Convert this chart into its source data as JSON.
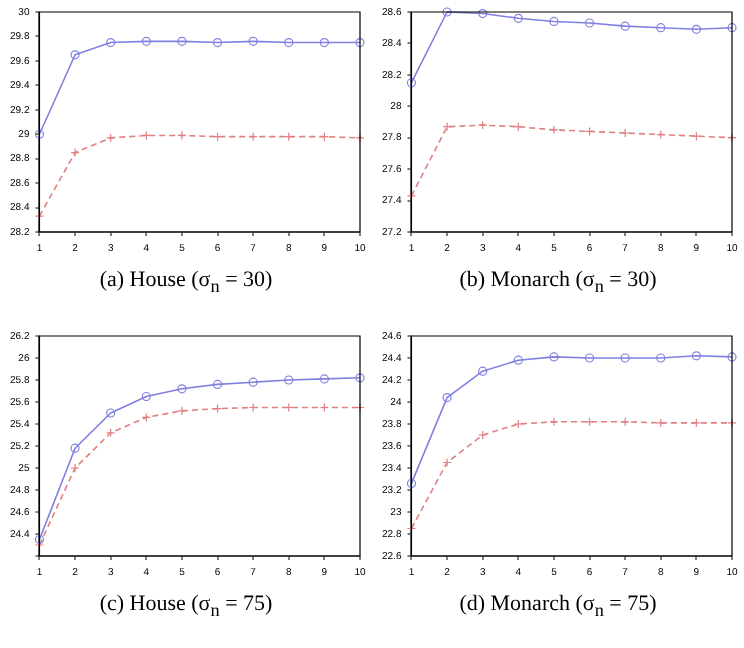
{
  "chart_data": [
    {
      "type": "line",
      "title": "(a) House (σ$_{n}$ = 30)",
      "x": [
        1,
        2,
        3,
        4,
        5,
        6,
        7,
        8,
        9,
        10
      ],
      "xlim": [
        1,
        10
      ],
      "xticks": [
        1,
        2,
        3,
        4,
        5,
        6,
        7,
        8,
        9,
        10
      ],
      "ylim": [
        28.2,
        30
      ],
      "yticks": [
        28.2,
        28.4,
        28.6,
        28.8,
        29,
        29.2,
        29.4,
        29.6,
        29.8,
        30
      ],
      "grid": false,
      "series": [
        {
          "color": "#8080e0",
          "marker": "circle",
          "line_style": "solid",
          "values": [
            29.0,
            29.65,
            29.75,
            29.76,
            29.76,
            29.75,
            29.76,
            29.75,
            29.75,
            29.75
          ]
        },
        {
          "color": "#e08080",
          "marker": "cross",
          "line_style": "dashed",
          "values": [
            28.33,
            28.85,
            28.97,
            28.99,
            28.99,
            28.98,
            28.98,
            28.98,
            28.98,
            28.97
          ]
        }
      ]
    },
    {
      "type": "line",
      "title": "(b) Monarch (σ$_{n}$ = 30)",
      "x": [
        1,
        2,
        3,
        4,
        5,
        6,
        7,
        8,
        9,
        10
      ],
      "xlim": [
        1,
        10
      ],
      "xticks": [
        1,
        2,
        3,
        4,
        5,
        6,
        7,
        8,
        9,
        10
      ],
      "ylim": [
        27.2,
        28.6
      ],
      "yticks": [
        27.2,
        27.4,
        27.6,
        27.8,
        28,
        28.2,
        28.4,
        28.6
      ],
      "grid": false,
      "series": [
        {
          "color": "#8080e0",
          "marker": "circle",
          "line_style": "solid",
          "values": [
            28.15,
            28.6,
            28.59,
            28.56,
            28.54,
            28.53,
            28.51,
            28.5,
            28.49,
            28.5
          ]
        },
        {
          "color": "#e08080",
          "marker": "cross",
          "line_style": "dashed",
          "values": [
            27.43,
            27.87,
            27.88,
            27.87,
            27.85,
            27.84,
            27.83,
            27.82,
            27.81,
            27.8
          ]
        }
      ]
    },
    {
      "type": "line",
      "title": "(c) House (σ$_{n}$ = 75)",
      "x": [
        1,
        2,
        3,
        4,
        5,
        6,
        7,
        8,
        9,
        10
      ],
      "xlim": [
        1,
        10
      ],
      "xticks": [
        1,
        2,
        3,
        4,
        5,
        6,
        7,
        8,
        9,
        10
      ],
      "ylim": [
        24.2,
        26.2
      ],
      "yticks": [
        {
          "value": 24.2,
          "label": null
        },
        24.4,
        24.6,
        24.8,
        25,
        25.2,
        25.4,
        25.6,
        25.8,
        26,
        26.2
      ],
      "grid": false,
      "series": [
        {
          "color": "#8080e0",
          "marker": "circle",
          "line_style": "solid",
          "values": [
            24.35,
            25.18,
            25.5,
            25.65,
            25.72,
            25.76,
            25.78,
            25.8,
            25.81,
            25.82
          ]
        },
        {
          "color": "#e08080",
          "marker": "cross",
          "line_style": "dashed",
          "values": [
            24.3,
            25.0,
            25.32,
            25.46,
            25.52,
            25.54,
            25.55,
            25.55,
            25.55,
            25.55
          ]
        }
      ]
    },
    {
      "type": "line",
      "title": "(d) Monarch (σ$_{n}$ = 75)",
      "x": [
        1,
        2,
        3,
        4,
        5,
        6,
        7,
        8,
        9,
        10
      ],
      "xlim": [
        1,
        10
      ],
      "xticks": [
        1,
        2,
        3,
        4,
        5,
        6,
        7,
        8,
        9,
        10
      ],
      "ylim": [
        22.6,
        24.6
      ],
      "yticks": [
        22.6,
        22.8,
        23,
        23.2,
        23.4,
        23.6,
        23.8,
        24,
        24.2,
        24.4,
        24.6
      ],
      "grid": false,
      "series": [
        {
          "color": "#8080e0",
          "marker": "circle",
          "line_style": "solid",
          "values": [
            23.26,
            24.04,
            24.28,
            24.38,
            24.41,
            24.4,
            24.4,
            24.4,
            24.42,
            24.41
          ]
        },
        {
          "color": "#e08080",
          "marker": "cross",
          "line_style": "dashed",
          "values": [
            22.85,
            23.45,
            23.7,
            23.8,
            23.82,
            23.82,
            23.82,
            23.81,
            23.81,
            23.81
          ]
        }
      ]
    }
  ]
}
